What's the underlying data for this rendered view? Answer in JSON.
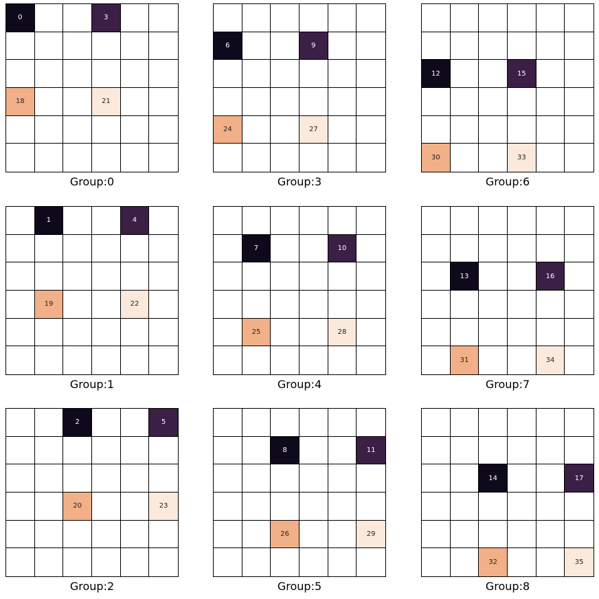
{
  "colors": {
    "black": "#0e0a1c",
    "purple": "#3b1f45",
    "orange": "#f2b088",
    "cream": "#fbeadb"
  },
  "panels": [
    {
      "label": "Group:0",
      "cells": [
        {
          "row": 0,
          "col": 0,
          "value": "0",
          "color": "black"
        },
        {
          "row": 0,
          "col": 3,
          "value": "3",
          "color": "purple"
        },
        {
          "row": 3,
          "col": 0,
          "value": "18",
          "color": "orange"
        },
        {
          "row": 3,
          "col": 3,
          "value": "21",
          "color": "cream"
        }
      ]
    },
    {
      "label": "Group:3",
      "cells": [
        {
          "row": 1,
          "col": 0,
          "value": "6",
          "color": "black"
        },
        {
          "row": 1,
          "col": 3,
          "value": "9",
          "color": "purple"
        },
        {
          "row": 4,
          "col": 0,
          "value": "24",
          "color": "orange"
        },
        {
          "row": 4,
          "col": 3,
          "value": "27",
          "color": "cream"
        }
      ]
    },
    {
      "label": "Group:6",
      "cells": [
        {
          "row": 2,
          "col": 0,
          "value": "12",
          "color": "black"
        },
        {
          "row": 2,
          "col": 3,
          "value": "15",
          "color": "purple"
        },
        {
          "row": 5,
          "col": 0,
          "value": "30",
          "color": "orange"
        },
        {
          "row": 5,
          "col": 3,
          "value": "33",
          "color": "cream"
        }
      ]
    },
    {
      "label": "Group:1",
      "cells": [
        {
          "row": 0,
          "col": 1,
          "value": "1",
          "color": "black"
        },
        {
          "row": 0,
          "col": 4,
          "value": "4",
          "color": "purple"
        },
        {
          "row": 3,
          "col": 1,
          "value": "19",
          "color": "orange"
        },
        {
          "row": 3,
          "col": 4,
          "value": "22",
          "color": "cream"
        }
      ]
    },
    {
      "label": "Group:4",
      "cells": [
        {
          "row": 1,
          "col": 1,
          "value": "7",
          "color": "black"
        },
        {
          "row": 1,
          "col": 4,
          "value": "10",
          "color": "purple"
        },
        {
          "row": 4,
          "col": 1,
          "value": "25",
          "color": "orange"
        },
        {
          "row": 4,
          "col": 4,
          "value": "28",
          "color": "cream"
        }
      ]
    },
    {
      "label": "Group:7",
      "cells": [
        {
          "row": 2,
          "col": 1,
          "value": "13",
          "color": "black"
        },
        {
          "row": 2,
          "col": 4,
          "value": "16",
          "color": "purple"
        },
        {
          "row": 5,
          "col": 1,
          "value": "31",
          "color": "orange"
        },
        {
          "row": 5,
          "col": 4,
          "value": "34",
          "color": "cream"
        }
      ]
    },
    {
      "label": "Group:2",
      "cells": [
        {
          "row": 0,
          "col": 2,
          "value": "2",
          "color": "black"
        },
        {
          "row": 0,
          "col": 5,
          "value": "5",
          "color": "purple"
        },
        {
          "row": 3,
          "col": 2,
          "value": "20",
          "color": "orange"
        },
        {
          "row": 3,
          "col": 5,
          "value": "23",
          "color": "cream"
        }
      ]
    },
    {
      "label": "Group:5",
      "cells": [
        {
          "row": 1,
          "col": 2,
          "value": "8",
          "color": "black"
        },
        {
          "row": 1,
          "col": 5,
          "value": "11",
          "color": "purple"
        },
        {
          "row": 4,
          "col": 2,
          "value": "26",
          "color": "orange"
        },
        {
          "row": 4,
          "col": 5,
          "value": "29",
          "color": "cream"
        }
      ]
    },
    {
      "label": "Group:8",
      "cells": [
        {
          "row": 2,
          "col": 2,
          "value": "14",
          "color": "black"
        },
        {
          "row": 2,
          "col": 5,
          "value": "17",
          "color": "purple"
        },
        {
          "row": 5,
          "col": 2,
          "value": "32",
          "color": "orange"
        },
        {
          "row": 5,
          "col": 5,
          "value": "35",
          "color": "cream"
        }
      ]
    }
  ]
}
